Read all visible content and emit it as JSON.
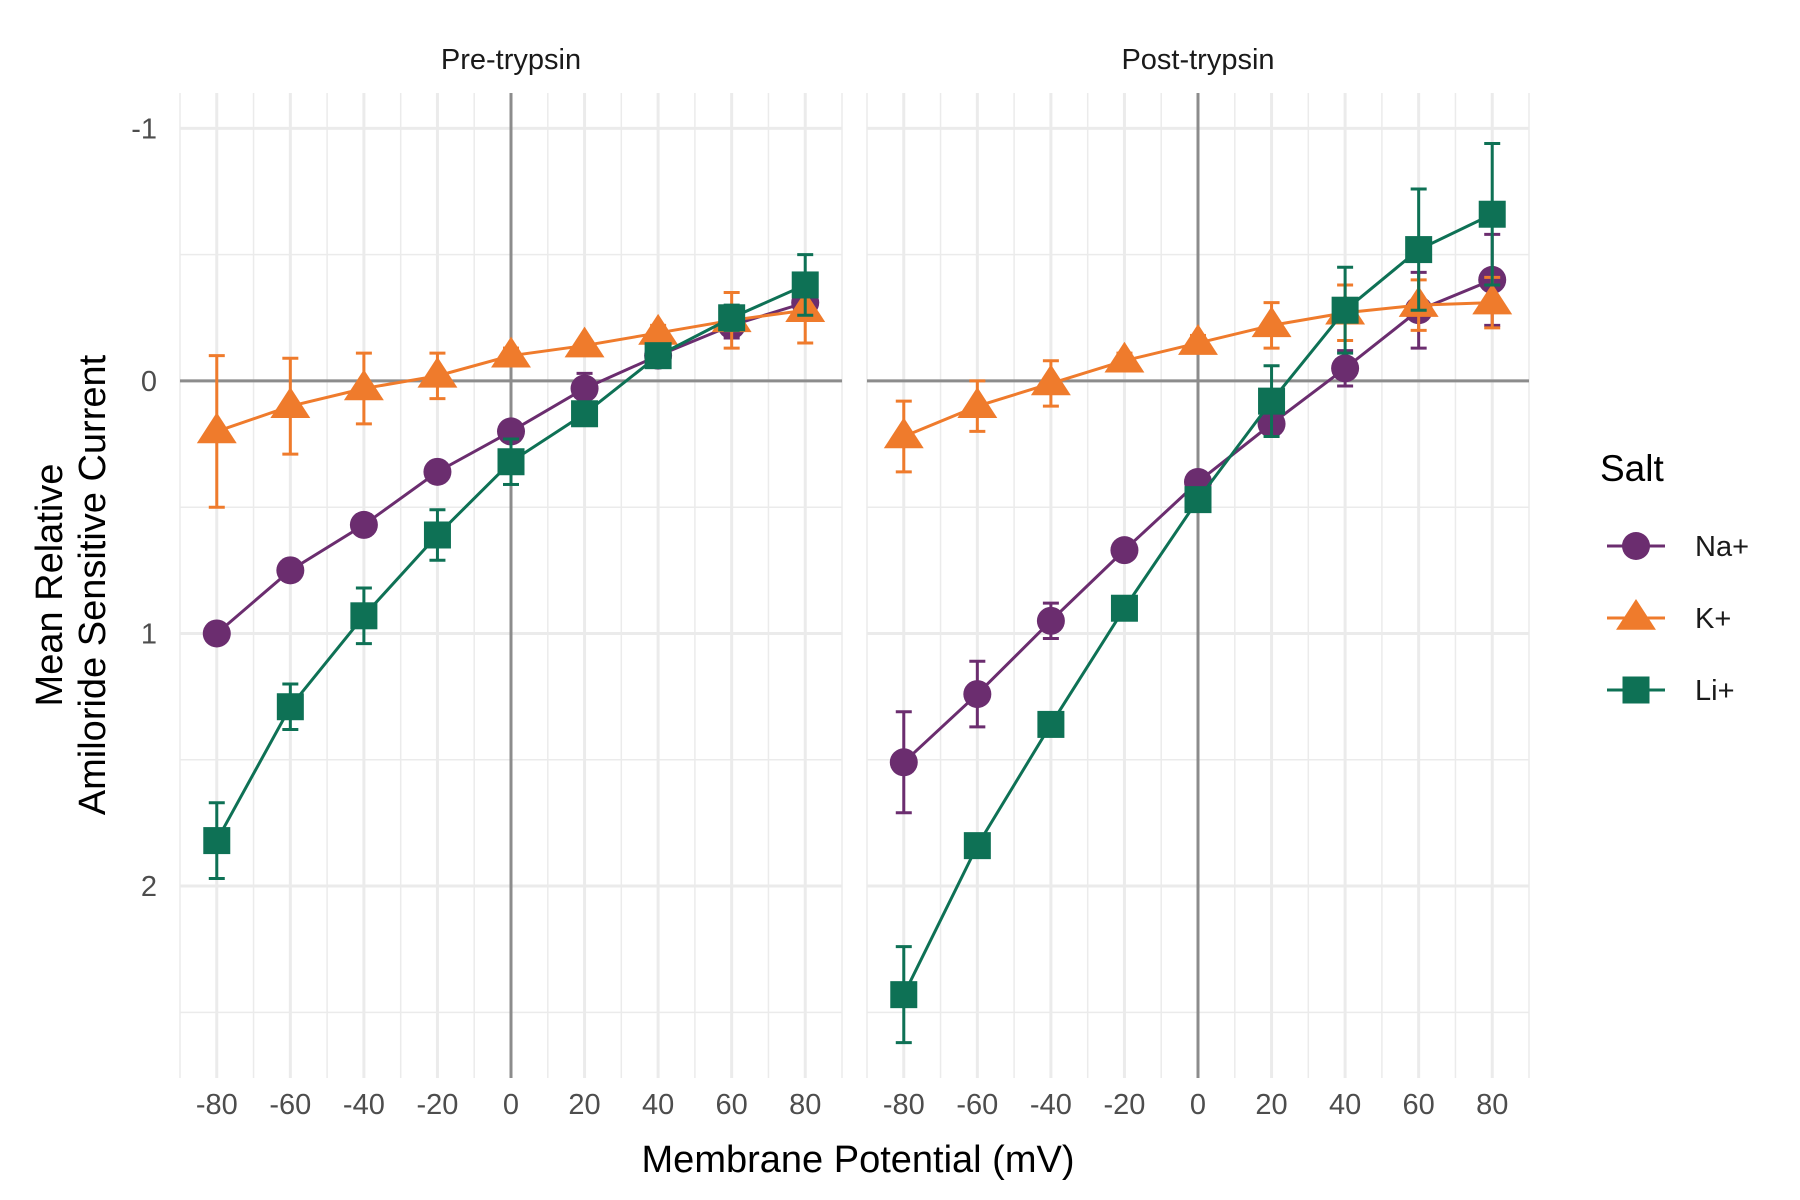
{
  "chart_data": {
    "type": "line",
    "facets": [
      "Pre-trypsin",
      "Post-trypsin"
    ],
    "xlabel": "Membrane Potential (mV)",
    "ylabel": [
      "Mean Relative",
      "Amiloride Sensitive Current"
    ],
    "x": [
      -80,
      -60,
      -40,
      -20,
      0,
      20,
      40,
      60,
      80
    ],
    "x_ticks": [
      "-80",
      "-60",
      "-40",
      "-20",
      "0",
      "20",
      "40",
      "60",
      "80"
    ],
    "xlim": [
      -90,
      90
    ],
    "y_ticks": [
      {
        "value": -1,
        "label": "-1"
      },
      {
        "value": 0,
        "label": "0"
      },
      {
        "value": 1,
        "label": "1"
      },
      {
        "value": 2,
        "label": "2"
      }
    ],
    "ylim_top": -1.14,
    "ylim_bottom": 2.76,
    "y_reversed": true,
    "grid": true,
    "reference_lines": {
      "x": 0,
      "y": 0
    },
    "legend": {
      "title": "Salt",
      "position": "right",
      "entries": [
        {
          "label": "Na+",
          "shape": "circle",
          "color": "#6b2d6f"
        },
        {
          "label": "K+",
          "shape": "triangle",
          "color": "#ef7b2c"
        },
        {
          "label": "Li+",
          "shape": "square",
          "color": "#0e7155"
        }
      ]
    },
    "panels": [
      {
        "label": "Pre-trypsin",
        "series": [
          {
            "name": "Na+",
            "values": [
              1.0,
              0.75,
              0.57,
              0.36,
              0.2,
              0.03,
              -0.1,
              -0.22,
              -0.31
            ],
            "err": [
              0.02,
              0.04,
              0.04,
              0.04,
              0.03,
              0.06,
              0.04,
              0.05,
              0.04
            ]
          },
          {
            "name": "K+",
            "values": [
              0.2,
              0.1,
              0.03,
              -0.02,
              -0.1,
              -0.14,
              -0.19,
              -0.24,
              -0.28
            ],
            "err": [
              0.3,
              0.19,
              0.14,
              0.09,
              0.03,
              0.02,
              0.03,
              0.11,
              0.13
            ]
          },
          {
            "name": "Li+",
            "values": [
              1.82,
              1.29,
              0.93,
              0.61,
              0.32,
              0.13,
              -0.1,
              -0.25,
              -0.38
            ],
            "err": [
              0.15,
              0.09,
              0.11,
              0.1,
              0.09,
              0.04,
              0.03,
              0.05,
              0.12
            ]
          }
        ]
      },
      {
        "label": "Post-trypsin",
        "series": [
          {
            "name": "Na+",
            "values": [
              1.51,
              1.24,
              0.95,
              0.67,
              0.4,
              0.17,
              -0.05,
              -0.28,
              -0.4
            ],
            "err": [
              0.2,
              0.13,
              0.07,
              0.03,
              0.03,
              0.03,
              0.07,
              0.15,
              0.18
            ]
          },
          {
            "name": "K+",
            "values": [
              0.22,
              0.1,
              0.01,
              -0.08,
              -0.15,
              -0.22,
              -0.27,
              -0.3,
              -0.31
            ],
            "err": [
              0.14,
              0.1,
              0.09,
              0.03,
              0.03,
              0.09,
              0.11,
              0.1,
              0.1
            ]
          },
          {
            "name": "Li+",
            "values": [
              2.43,
              1.84,
              1.36,
              0.9,
              0.47,
              0.08,
              -0.28,
              -0.52,
              -0.66
            ],
            "err": [
              0.19,
              0.03,
              0.03,
              0.03,
              0.03,
              0.14,
              0.17,
              0.24,
              0.28
            ]
          }
        ]
      }
    ]
  }
}
